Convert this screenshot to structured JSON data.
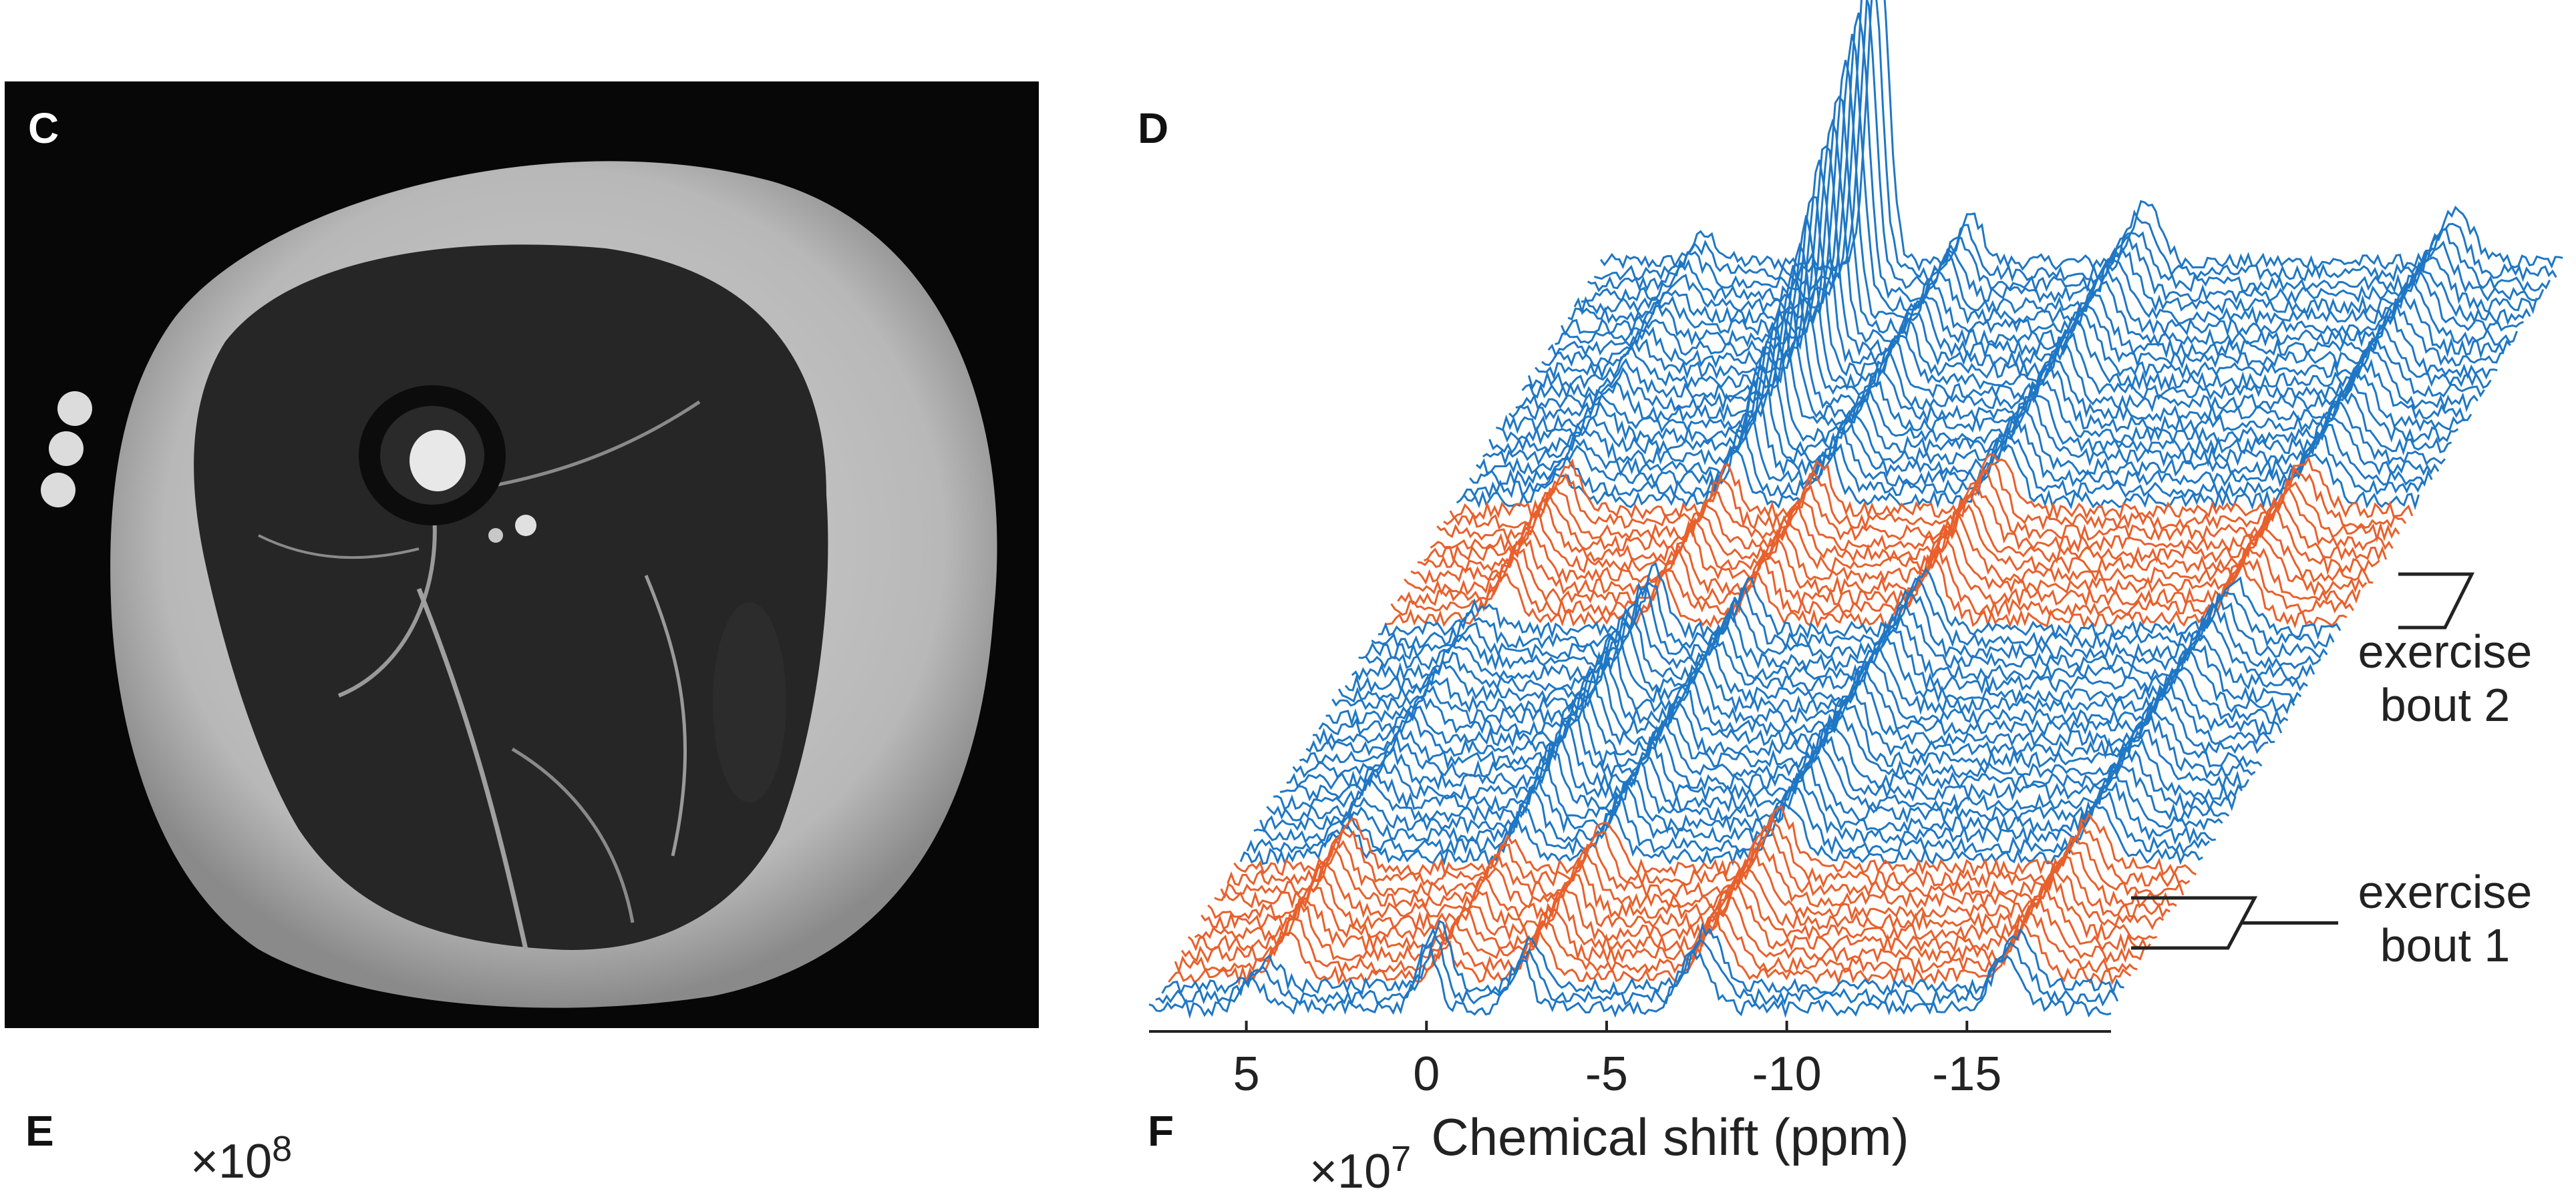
{
  "panels": {
    "c": {
      "label": "C"
    },
    "d": {
      "label": "D"
    },
    "e": {
      "label": "E",
      "multiplier_base": "×10",
      "multiplier_exp": "8"
    },
    "f": {
      "label": "F",
      "multiplier_base": "×10",
      "multiplier_exp": "7"
    }
  },
  "colors": {
    "baseline": "#1f77c4",
    "exercise": "#e8602c",
    "axis": "#222222"
  },
  "chart_data": {
    "type": "line",
    "subtype": "stacked-waterfall-spectra",
    "xlabel": "Chemical shift (ppm)",
    "x_ticks": [
      5,
      0,
      -5,
      -10,
      -15
    ],
    "x_tick_labels": [
      "5",
      "0",
      "-5",
      "-10",
      "-15"
    ],
    "xlim": [
      7.7,
      -19
    ],
    "x_reversed": true,
    "series": [
      {
        "name": "exercise bout 1"
      },
      {
        "name": "exercise bout 2"
      }
    ],
    "peaks_ppm": [
      4.8,
      0,
      -2.6,
      -7.6,
      -16.2
    ]
  }
}
